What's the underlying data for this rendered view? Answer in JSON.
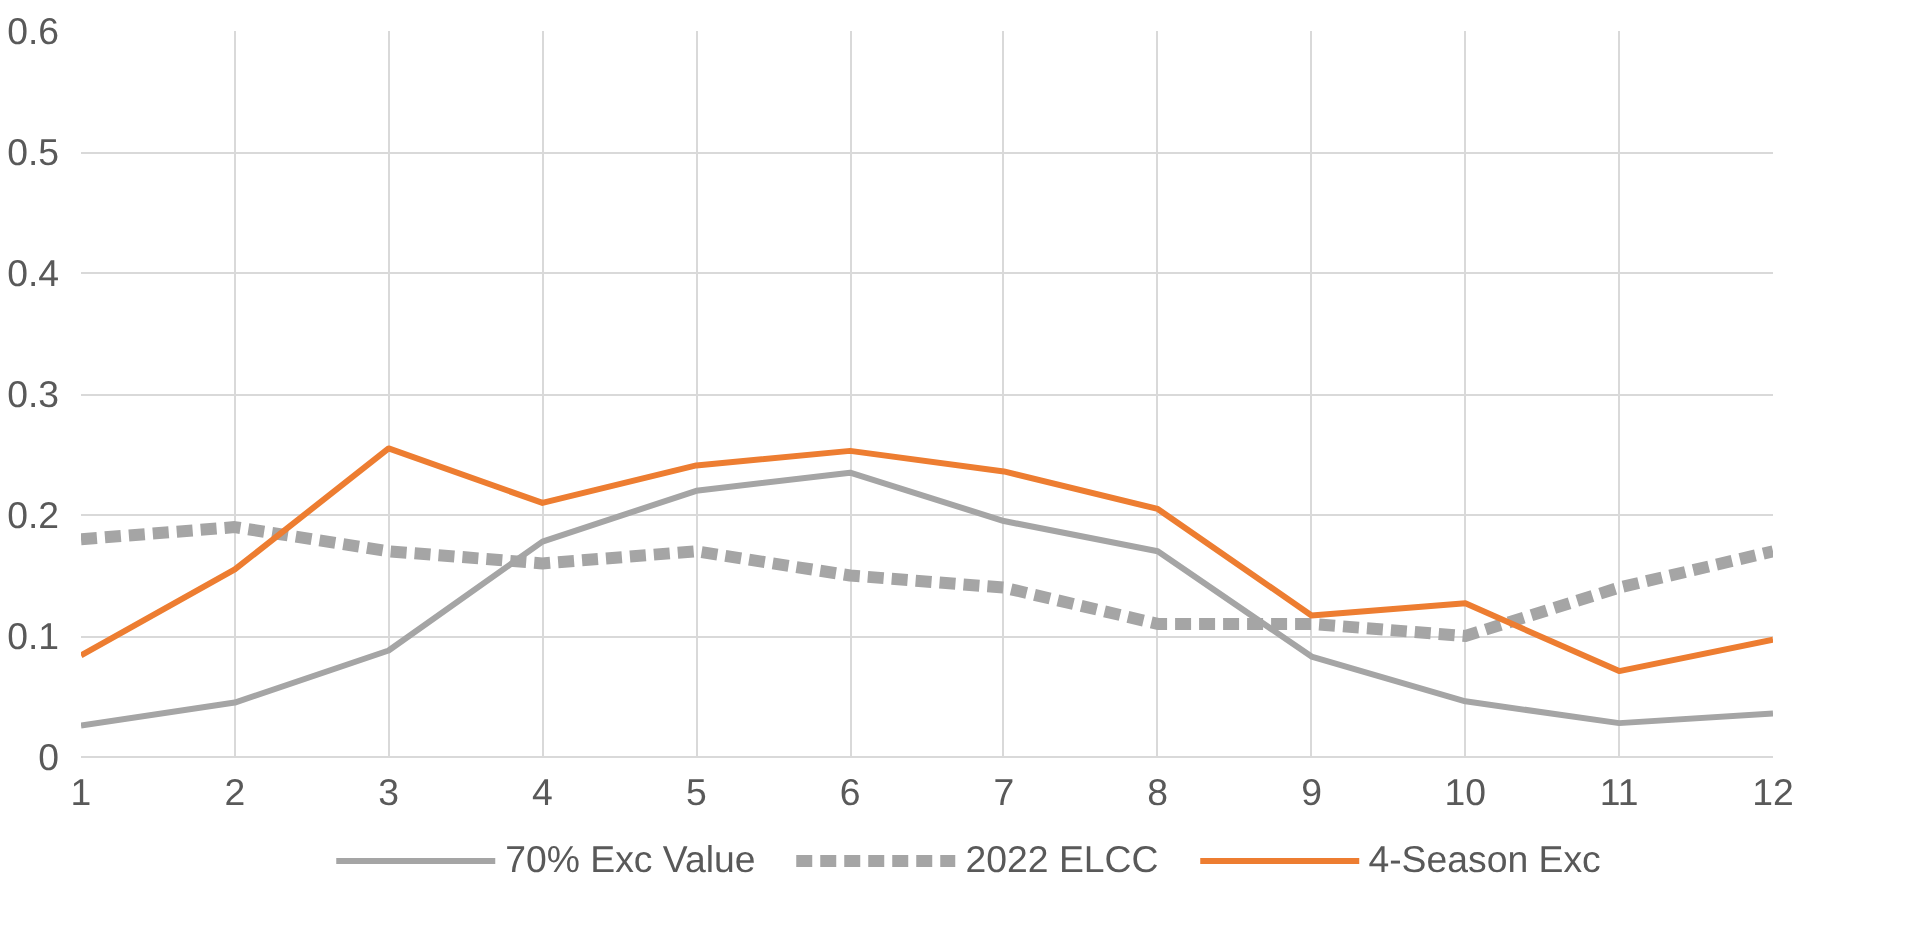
{
  "chart_data": {
    "type": "line",
    "x": [
      1,
      2,
      3,
      4,
      5,
      6,
      7,
      8,
      9,
      10,
      11,
      12
    ],
    "xlim": [
      1,
      12
    ],
    "xticks": [
      1,
      2,
      3,
      4,
      5,
      6,
      7,
      8,
      9,
      10,
      11,
      12
    ],
    "ylim": [
      0,
      0.6
    ],
    "yticks": [
      0,
      0.1,
      0.2,
      0.3,
      0.4,
      0.5,
      0.6
    ],
    "grid": true,
    "legend": "bottom",
    "marker": "none",
    "series": [
      {
        "name": "70% Exc Value",
        "color": "#a5a5a5",
        "line_style": "solid",
        "values": [
          0.026,
          0.045,
          0.088,
          0.178,
          0.22,
          0.235,
          0.195,
          0.17,
          0.083,
          0.046,
          0.028,
          0.036
        ]
      },
      {
        "name": "2022 ELCC",
        "color": "#a5a5a5",
        "line_style": "dashed",
        "values": [
          0.18,
          0.19,
          0.17,
          0.16,
          0.17,
          0.15,
          0.14,
          0.11,
          0.11,
          0.1,
          0.14,
          0.17
        ]
      },
      {
        "name": "4-Season Exc",
        "color": "#ed7d31",
        "line_style": "solid",
        "values": [
          0.084,
          0.155,
          0.255,
          0.21,
          0.241,
          0.253,
          0.236,
          0.205,
          0.117,
          0.127,
          0.071,
          0.097
        ]
      }
    ]
  }
}
